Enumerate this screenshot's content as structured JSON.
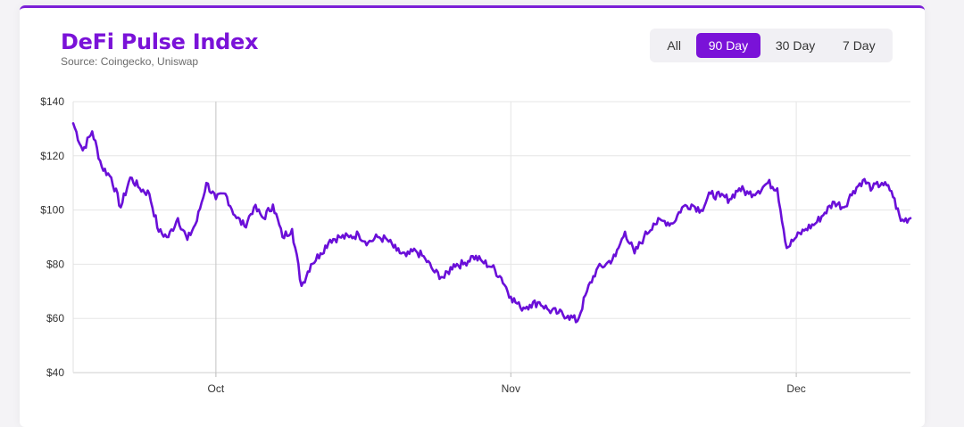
{
  "header": {
    "title": "DeFi Pulse Index",
    "subtitle": "Source: Coingecko, Uniswap"
  },
  "range_buttons": [
    {
      "label": "All",
      "active": false
    },
    {
      "label": "90 Day",
      "active": true
    },
    {
      "label": "30 Day",
      "active": false
    },
    {
      "label": "7 Day",
      "active": false
    }
  ],
  "colors": {
    "accent": "#7a12d8",
    "line": "#6a0fd8",
    "grid": "#e6e6e6"
  },
  "chart_data": {
    "type": "line",
    "title": "DeFi Pulse Index",
    "subtitle": "Source: Coingecko, Uniswap",
    "xlabel": "",
    "ylabel": "",
    "ylim": [
      40,
      140
    ],
    "yticks": [
      40,
      60,
      80,
      100,
      120,
      140
    ],
    "ytick_labels": [
      "$40",
      "$60",
      "$80",
      "$100",
      "$120",
      "$140"
    ],
    "xrange": [
      "2020-09-16",
      "2020-12-13"
    ],
    "xticks": [
      {
        "label": "Oct",
        "date": "2020-10-01"
      },
      {
        "label": "Nov",
        "date": "2020-11-01"
      },
      {
        "label": "Dec",
        "date": "2020-12-01"
      }
    ],
    "grid": true,
    "series": [
      {
        "x": [
          "2020-09-16",
          "2020-09-17",
          "2020-09-18",
          "2020-09-19",
          "2020-09-20",
          "2020-09-21",
          "2020-09-22",
          "2020-09-23",
          "2020-09-24",
          "2020-09-25",
          "2020-09-26",
          "2020-09-27",
          "2020-09-28",
          "2020-09-29",
          "2020-09-30",
          "2020-10-01",
          "2020-10-02",
          "2020-10-03",
          "2020-10-04",
          "2020-10-05",
          "2020-10-06",
          "2020-10-07",
          "2020-10-08",
          "2020-10-09",
          "2020-10-10",
          "2020-10-11",
          "2020-10-12",
          "2020-10-13",
          "2020-10-14",
          "2020-10-15",
          "2020-10-16",
          "2020-10-17",
          "2020-10-18",
          "2020-10-19",
          "2020-10-20",
          "2020-10-21",
          "2020-10-22",
          "2020-10-23",
          "2020-10-24",
          "2020-10-25",
          "2020-10-26",
          "2020-10-27",
          "2020-10-28",
          "2020-10-29",
          "2020-10-30",
          "2020-10-31",
          "2020-11-01",
          "2020-11-02",
          "2020-11-03",
          "2020-11-04",
          "2020-11-05",
          "2020-11-06",
          "2020-11-07",
          "2020-11-08",
          "2020-11-09",
          "2020-11-10",
          "2020-11-11",
          "2020-11-12",
          "2020-11-13",
          "2020-11-14",
          "2020-11-15",
          "2020-11-16",
          "2020-11-17",
          "2020-11-18",
          "2020-11-19",
          "2020-11-20",
          "2020-11-21",
          "2020-11-22",
          "2020-11-23",
          "2020-11-24",
          "2020-11-25",
          "2020-11-26",
          "2020-11-27",
          "2020-11-28",
          "2020-11-29",
          "2020-11-30",
          "2020-12-01",
          "2020-12-02",
          "2020-12-03",
          "2020-12-04",
          "2020-12-05",
          "2020-12-06",
          "2020-12-07",
          "2020-12-08",
          "2020-12-09",
          "2020-12-10",
          "2020-12-11",
          "2020-12-12",
          "2020-12-13"
        ],
        "values": [
          132,
          122,
          129,
          116,
          112,
          101,
          112,
          108,
          106,
          92,
          90,
          97,
          89,
          96,
          110,
          104,
          106,
          98,
          94,
          101,
          97,
          102,
          90,
          93,
          72,
          80,
          84,
          89,
          90,
          90,
          91,
          88,
          90,
          89,
          85,
          83,
          85,
          82,
          77,
          75,
          80,
          80,
          83,
          81,
          79,
          75,
          68,
          64,
          65,
          66,
          63,
          62,
          61,
          59,
          70,
          78,
          80,
          83,
          92,
          84,
          90,
          95,
          96,
          95,
          101,
          102,
          100,
          106,
          105,
          104,
          108,
          106,
          107,
          110,
          108,
          86,
          90,
          93,
          95,
          99,
          103,
          101,
          107,
          111,
          108,
          110,
          107,
          96,
          97
        ]
      }
    ]
  }
}
